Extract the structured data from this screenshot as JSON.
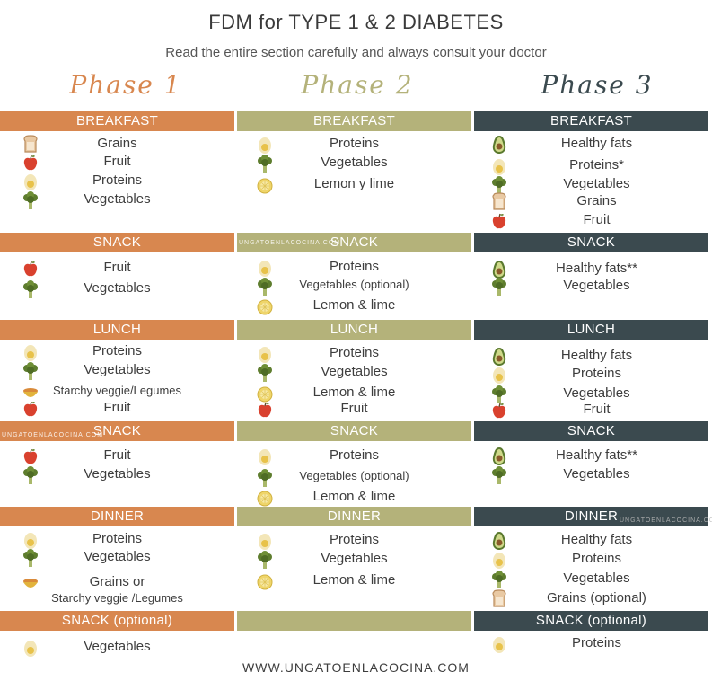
{
  "title": "FDM for TYPE 1 & 2 DIABETES",
  "subtitle": "Read the entire section carefully and always consult your doctor",
  "footer": "WWW.UNGATOENLACOCINA.COM",
  "watermark": "UNGATOENLACOCINA.COM",
  "colors": {
    "phase1": "#d8874f",
    "phase2": "#b4b27a",
    "phase3": "#3b4a4f"
  },
  "phases": [
    {
      "label": "Phase 1",
      "sections": [
        {
          "label": "BREAKFAST",
          "items": [
            {
              "icon": "toast-icon",
              "text": "Grains"
            },
            {
              "icon": "apple-icon",
              "text": "Fruit"
            },
            {
              "icon": "egg-icon",
              "text": "Proteins"
            },
            {
              "icon": "broccoli-icon",
              "text": "Vegetables"
            }
          ]
        },
        {
          "label": "SNACK",
          "items": [
            {
              "icon": "apple-icon",
              "text": "Fruit"
            },
            {
              "icon": "broccoli-icon",
              "text": "Vegetables"
            }
          ]
        },
        {
          "label": "LUNCH",
          "items": [
            {
              "icon": "egg-icon",
              "text": "Proteins"
            },
            {
              "icon": "broccoli-icon",
              "text": "Vegetables"
            },
            {
              "icon": "bowl-icon",
              "text": "Starchy veggie/Legumes"
            },
            {
              "icon": "apple-icon",
              "text": "Fruit"
            }
          ]
        },
        {
          "label": "SNACK",
          "items": [
            {
              "icon": "apple-icon",
              "text": "Fruit"
            },
            {
              "icon": "broccoli-icon",
              "text": "Vegetables"
            }
          ]
        },
        {
          "label": "DINNER",
          "items": [
            {
              "icon": "egg-icon",
              "text": "Proteins"
            },
            {
              "icon": "broccoli-icon",
              "text": "Vegetables"
            },
            {
              "icon": "bowl-icon",
              "text": "Grains or"
            },
            {
              "icon": "",
              "text": "Starchy veggie /Legumes"
            }
          ]
        },
        {
          "label": "SNACK (optional)",
          "items": [
            {
              "icon": "egg-icon",
              "text": "Vegetables"
            }
          ]
        }
      ]
    },
    {
      "label": "Phase 2",
      "sections": [
        {
          "label": "BREAKFAST",
          "items": [
            {
              "icon": "egg-icon",
              "text": "Proteins"
            },
            {
              "icon": "broccoli-icon",
              "text": "Vegetables"
            },
            {
              "icon": "lemon-icon",
              "text": "Lemon y lime"
            }
          ]
        },
        {
          "label": "SNACK",
          "items": [
            {
              "icon": "egg-icon",
              "text": "Proteins"
            },
            {
              "icon": "broccoli-icon",
              "text": "Vegetables (optional)"
            },
            {
              "icon": "lemon-icon",
              "text": "Lemon & lime"
            }
          ]
        },
        {
          "label": "LUNCH",
          "items": [
            {
              "icon": "egg-icon",
              "text": "Proteins"
            },
            {
              "icon": "broccoli-icon",
              "text": "Vegetables"
            },
            {
              "icon": "lemon-icon",
              "text": "Lemon & lime"
            },
            {
              "icon": "apple-icon",
              "text": "Fruit"
            }
          ]
        },
        {
          "label": "SNACK",
          "items": [
            {
              "icon": "egg-icon",
              "text": "Proteins"
            },
            {
              "icon": "broccoli-icon",
              "text": "Vegetables (optional)"
            },
            {
              "icon": "lemon-icon",
              "text": "Lemon & lime"
            }
          ]
        },
        {
          "label": "DINNER",
          "items": [
            {
              "icon": "egg-icon",
              "text": "Proteins"
            },
            {
              "icon": "broccoli-icon",
              "text": "Vegetables"
            },
            {
              "icon": "lemon-icon",
              "text": "Lemon & lime"
            }
          ]
        },
        {
          "label": "",
          "items": []
        }
      ]
    },
    {
      "label": "Phase 3",
      "sections": [
        {
          "label": "BREAKFAST",
          "items": [
            {
              "icon": "avocado-icon",
              "text": "Healthy fats"
            },
            {
              "icon": "egg-icon",
              "text": "Proteins*"
            },
            {
              "icon": "broccoli-icon",
              "text": "Vegetables"
            },
            {
              "icon": "toast-icon",
              "text": "Grains"
            },
            {
              "icon": "apple-icon",
              "text": "Fruit"
            }
          ]
        },
        {
          "label": "SNACK",
          "items": [
            {
              "icon": "avocado-icon",
              "text": "Healthy fats**"
            },
            {
              "icon": "broccoli-icon",
              "text": "Vegetables"
            }
          ]
        },
        {
          "label": "LUNCH",
          "items": [
            {
              "icon": "avocado-icon",
              "text": "Healthy fats"
            },
            {
              "icon": "egg-icon",
              "text": "Proteins"
            },
            {
              "icon": "broccoli-icon",
              "text": "Vegetables"
            },
            {
              "icon": "apple-icon",
              "text": "Fruit"
            }
          ]
        },
        {
          "label": "SNACK",
          "items": [
            {
              "icon": "avocado-icon",
              "text": "Healthy fats**"
            },
            {
              "icon": "broccoli-icon",
              "text": "Vegetables"
            }
          ]
        },
        {
          "label": "DINNER",
          "items": [
            {
              "icon": "avocado-icon",
              "text": "Healthy fats"
            },
            {
              "icon": "egg-icon",
              "text": "Proteins"
            },
            {
              "icon": "broccoli-icon",
              "text": "Vegetables"
            },
            {
              "icon": "toast-icon",
              "text": "Grains (optional)"
            }
          ]
        },
        {
          "label": "SNACK (optional)",
          "items": [
            {
              "icon": "egg-icon",
              "text": "Proteins"
            }
          ]
        }
      ]
    }
  ]
}
